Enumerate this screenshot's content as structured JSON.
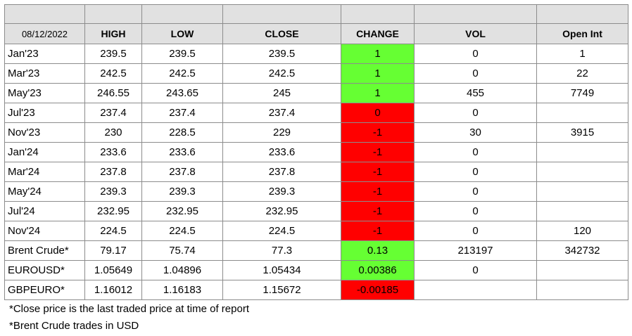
{
  "header": {
    "date": "08/12/2022",
    "columns": [
      "HIGH",
      "LOW",
      "CLOSE",
      "CHANGE",
      "VOL",
      "Open Int"
    ]
  },
  "rows": [
    {
      "label": "Jan'23",
      "high": "239.5",
      "low": "239.5",
      "close": "239.5",
      "change": "1",
      "direction": "up",
      "vol": "0",
      "open_int": "1"
    },
    {
      "label": "Mar'23",
      "high": "242.5",
      "low": "242.5",
      "close": "242.5",
      "change": "1",
      "direction": "up",
      "vol": "0",
      "open_int": "22"
    },
    {
      "label": "May'23",
      "high": "246.55",
      "low": "243.65",
      "close": "245",
      "change": "1",
      "direction": "up",
      "vol": "455",
      "open_int": "7749"
    },
    {
      "label": "Jul'23",
      "high": "237.4",
      "low": "237.4",
      "close": "237.4",
      "change": "0",
      "direction": "down",
      "vol": "0",
      "open_int": ""
    },
    {
      "label": "Nov'23",
      "high": "230",
      "low": "228.5",
      "close": "229",
      "change": "-1",
      "direction": "down",
      "vol": "30",
      "open_int": "3915"
    },
    {
      "label": "Jan'24",
      "high": "233.6",
      "low": "233.6",
      "close": "233.6",
      "change": "-1",
      "direction": "down",
      "vol": "0",
      "open_int": ""
    },
    {
      "label": "Mar'24",
      "high": "237.8",
      "low": "237.8",
      "close": "237.8",
      "change": "-1",
      "direction": "down",
      "vol": "0",
      "open_int": ""
    },
    {
      "label": "May'24",
      "high": "239.3",
      "low": "239.3",
      "close": "239.3",
      "change": "-1",
      "direction": "down",
      "vol": "0",
      "open_int": ""
    },
    {
      "label": "Jul'24",
      "high": "232.95",
      "low": "232.95",
      "close": "232.95",
      "change": "-1",
      "direction": "down",
      "vol": "0",
      "open_int": ""
    },
    {
      "label": "Nov'24",
      "high": "224.5",
      "low": "224.5",
      "close": "224.5",
      "change": "-1",
      "direction": "down",
      "vol": "0",
      "open_int": "120"
    },
    {
      "label": "Brent Crude*",
      "high": "79.17",
      "low": "75.74",
      "close": "77.3",
      "change": "0.13",
      "direction": "up",
      "vol": "213197",
      "open_int": "342732"
    },
    {
      "label": "EUROUSD*",
      "high": "1.05649",
      "low": "1.04896",
      "close": "1.05434",
      "change": "0.00386",
      "direction": "up",
      "vol": "0",
      "open_int": ""
    },
    {
      "label": "GBPEURO*",
      "high": "1.16012",
      "low": "1.16183",
      "close": "1.15672",
      "change": "-0.00185",
      "direction": "down",
      "vol": "",
      "open_int": ""
    }
  ],
  "colors": {
    "up": "#66ff33",
    "down": "#ff0000",
    "header_bg": "#e1e1e1"
  },
  "footnotes": [
    "*Close price is the last traded price at time of report",
    "*Brent Crude trades in USD"
  ]
}
